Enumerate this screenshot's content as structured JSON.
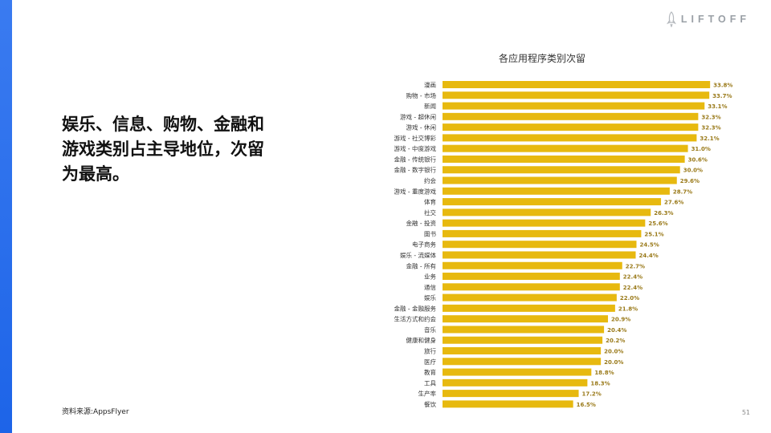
{
  "brand": {
    "logo_text": "LIFTOFF",
    "logo_icon": "rocket-icon"
  },
  "headline": "娱乐、信息、购物、金融和\n游戏类别占主导地位，次留\n为最高。",
  "source": "资料来源:AppsFlyer",
  "page_number": "51",
  "colors": {
    "accent_bar": "#2b6ff0",
    "bar": "#e7b90f",
    "value_label": "#9a7a1a"
  },
  "chart_data": {
    "type": "bar",
    "orientation": "horizontal",
    "title": "各应用程序类别次留",
    "categories": [
      "漫画",
      "购物 - 市场",
      "新闻",
      "游戏 - 超休闲",
      "游戏 - 休闲",
      "游戏 - 社交博彩",
      "游戏 - 中度游戏",
      "金融 - 传统银行",
      "金融 - 数字银行",
      "约会",
      "游戏 - 重度游戏",
      "体育",
      "社交",
      "金融 - 投资",
      "图书",
      "电子商务",
      "娱乐 - 流媒体",
      "金融 - 所有",
      "业务",
      "通信",
      "娱乐",
      "金融 - 金融服务",
      "生活方式和约会",
      "音乐",
      "健康和健身",
      "旅行",
      "医疗",
      "教育",
      "工具",
      "生产率",
      "餐饮"
    ],
    "values": [
      33.8,
      33.7,
      33.1,
      32.3,
      32.3,
      32.1,
      31.0,
      30.6,
      30.0,
      29.6,
      28.7,
      27.6,
      26.3,
      25.6,
      25.1,
      24.5,
      24.4,
      22.7,
      22.4,
      22.4,
      22.0,
      21.8,
      20.9,
      20.4,
      20.2,
      20.0,
      20.0,
      18.8,
      18.3,
      17.2,
      16.5
    ],
    "labels": [
      "33.8%",
      "33.7%",
      "33.1%",
      "32.3%",
      "32.3%",
      "32.1%",
      "31.0%",
      "30.6%",
      "30.0%",
      "29.6%",
      "28.7%",
      "27.6%",
      "26.3%",
      "25.6%",
      "25.1%",
      "24.5%",
      "24.4%",
      "22.7%",
      "22.4%",
      "22.4%",
      "22.0%",
      "21.8%",
      "20.9%",
      "20.4%",
      "20.2%",
      "20.0%",
      "20.0%",
      "18.8%",
      "18.3%",
      "17.2%",
      "16.5%"
    ],
    "xlim": [
      0,
      35
    ],
    "grid": false,
    "legend": "none"
  }
}
